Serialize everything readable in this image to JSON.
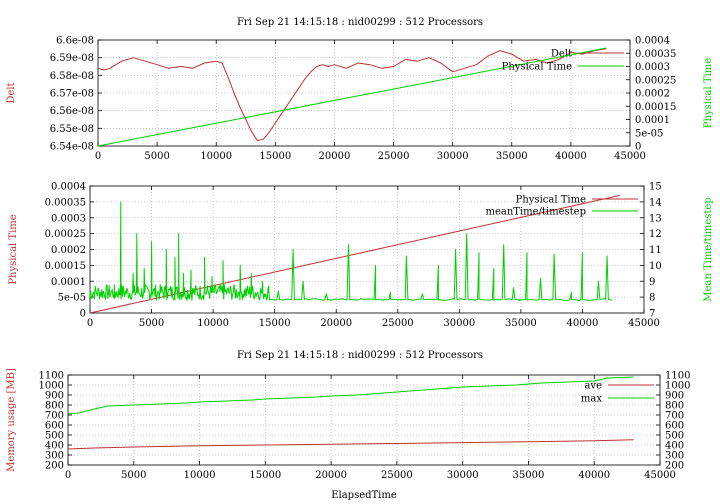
{
  "colors": {
    "red": "#c03030",
    "green": "#00d000",
    "grid": "#a0a0a0"
  },
  "chart_data": [
    {
      "type": "line",
      "title": "Fri Sep 21 14:15:18 : nid00299 : 512 Processors",
      "xlabel": "",
      "ylabel": "Delt",
      "y2label": "Physical Time",
      "xlim": [
        0,
        45000
      ],
      "ylim": [
        6.54e-08,
        6.6e-08
      ],
      "y2lim": [
        0,
        0.0004
      ],
      "xticks": [
        "0",
        "5000",
        "10000",
        "15000",
        "20000",
        "25000",
        "30000",
        "35000",
        "40000",
        "45000"
      ],
      "yticks": [
        "6.54e-08",
        "6.55e-08",
        "6.56e-08",
        "6.57e-08",
        "6.58e-08",
        "6.59e-08",
        "6.6e-08"
      ],
      "y2ticks": [
        "0",
        "5e-05",
        "0.0001",
        "0.00015",
        "0.0002",
        "0.00025",
        "0.0003",
        "0.00035",
        "0.0004"
      ],
      "grid": true,
      "legend_position": "top-right",
      "series": [
        {
          "name": "Delt",
          "axis": "y",
          "color": "red",
          "x": [
            0,
            500,
            1000,
            2000,
            3000,
            4000,
            5000,
            6000,
            7000,
            8000,
            9000,
            10000,
            10500,
            11000,
            11500,
            12000,
            12500,
            13000,
            13500,
            14000,
            14500,
            15000,
            15500,
            16000,
            16500,
            17000,
            17500,
            18000,
            18500,
            19000,
            19500,
            20000,
            21000,
            22000,
            23000,
            24000,
            25000,
            26000,
            27000,
            28000,
            29000,
            30000,
            31000,
            32000,
            33000,
            34000,
            35000,
            36000,
            37000,
            38000,
            39000,
            40000,
            41000,
            42000,
            43000
          ],
          "y": [
            6.584e-08,
            6.583e-08,
            6.584e-08,
            6.588e-08,
            6.59e-08,
            6.588e-08,
            6.586e-08,
            6.584e-08,
            6.585e-08,
            6.584e-08,
            6.587e-08,
            6.588e-08,
            6.587e-08,
            6.579e-08,
            6.57e-08,
            6.562e-08,
            6.555e-08,
            6.548e-08,
            6.543e-08,
            6.544e-08,
            6.548e-08,
            6.553e-08,
            6.558e-08,
            6.563e-08,
            6.568e-08,
            6.573e-08,
            6.578e-08,
            6.582e-08,
            6.585e-08,
            6.586e-08,
            6.585e-08,
            6.586e-08,
            6.584e-08,
            6.587e-08,
            6.586e-08,
            6.584e-08,
            6.585e-08,
            6.589e-08,
            6.588e-08,
            6.59e-08,
            6.587e-08,
            6.582e-08,
            6.584e-08,
            6.586e-08,
            6.591e-08,
            6.594e-08,
            6.592e-08,
            6.588e-08,
            6.589e-08,
            6.587e-08,
            6.589e-08,
            6.593e-08,
            6.592e-08,
            6.594e-08,
            6.595e-08
          ]
        },
        {
          "name": "Physical Time",
          "axis": "y2",
          "color": "green",
          "x": [
            0,
            43000
          ],
          "y": [
            0,
            0.00037
          ]
        }
      ]
    },
    {
      "type": "line",
      "title": "",
      "xlabel": "",
      "ylabel": "Physical Time",
      "y2label": "Mean Time/timestep",
      "xlim": [
        0,
        45000
      ],
      "ylim": [
        0,
        0.0004
      ],
      "y2lim": [
        7,
        15
      ],
      "xticks": [
        "0",
        "5000",
        "10000",
        "15000",
        "20000",
        "25000",
        "30000",
        "35000",
        "40000",
        "45000"
      ],
      "yticks": [
        "0",
        "5e-05",
        "0.0001",
        "0.00015",
        "0.0002",
        "0.00025",
        "0.0003",
        "0.00035",
        "0.0004"
      ],
      "y2ticks": [
        "7",
        "8",
        "9",
        "10",
        "11",
        "12",
        "13",
        "14",
        "15"
      ],
      "grid": true,
      "legend_position": "top-right",
      "series": [
        {
          "name": "Physical Time",
          "axis": "y",
          "color": "red",
          "x": [
            0,
            43000
          ],
          "y": [
            0,
            0.00037
          ]
        },
        {
          "name": "meanTime/timestep",
          "axis": "y2",
          "color": "green",
          "noisy_end_x": 14600,
          "noisy_range": [
            7.8,
            8.8
          ],
          "x": [
            0,
            2000,
            2500,
            3500,
            3800,
            4400,
            5000,
            5300,
            6200,
            6900,
            7200,
            7600,
            8200,
            9300,
            9900,
            10800,
            12200,
            13100,
            14000,
            14500,
            15300,
            16500,
            17300,
            19200,
            21000,
            23200,
            24400,
            25700,
            27000,
            28300,
            29700,
            30600,
            31600,
            32800,
            33600,
            34400,
            35500,
            36600,
            37700,
            39100,
            40000,
            41300,
            42000
          ],
          "y": [
            8.0,
            7.9,
            14.0,
            9.5,
            12.0,
            9.8,
            11.5,
            8.6,
            11.0,
            10.5,
            12.0,
            9.5,
            9.7,
            10.5,
            9.3,
            10.3,
            10.0,
            9.5,
            9.0,
            8.7,
            8.4,
            11.0,
            9.0,
            8.2,
            11.3,
            10.0,
            8.3,
            10.6,
            8.2,
            10.0,
            11.0,
            12.0,
            10.8,
            9.8,
            11.3,
            8.6,
            10.8,
            9.2,
            10.7,
            8.3,
            10.8,
            9.0,
            10.6
          ]
        }
      ]
    },
    {
      "type": "line",
      "title": "Fri Sep 21 14:15:18 : nid00299 : 512 Processors",
      "xlabel": "ElapsedTime",
      "ylabel": "Memory usage [MB]",
      "y2label": "",
      "xlim": [
        0,
        45000
      ],
      "ylim": [
        200,
        1100
      ],
      "y2lim": [
        200,
        1100
      ],
      "xticks": [
        "0",
        "5000",
        "10000",
        "15000",
        "20000",
        "25000",
        "30000",
        "35000",
        "40000",
        "45000"
      ],
      "yticks": [
        "200",
        "300",
        "400",
        "500",
        "600",
        "700",
        "800",
        "900",
        "1000",
        "1100"
      ],
      "y2ticks": [
        "200",
        "300",
        "400",
        "500",
        "600",
        "700",
        "800",
        "900",
        "1000",
        "1100"
      ],
      "grid": true,
      "legend_position": "top-right",
      "series": [
        {
          "name": "ave",
          "axis": "y",
          "color": "red",
          "x": [
            0,
            2000,
            5000,
            10000,
            15000,
            20000,
            25000,
            30000,
            35000,
            40000,
            43000
          ],
          "y": [
            360,
            370,
            380,
            392,
            400,
            408,
            415,
            424,
            432,
            442,
            452
          ]
        },
        {
          "name": "max",
          "axis": "y",
          "color": "green",
          "x": [
            0,
            800,
            2000,
            3000,
            5000,
            7000,
            9000,
            10000,
            12000,
            14000,
            15000,
            17000,
            19000,
            20000,
            22000,
            24000,
            26000,
            28000,
            30000,
            32000,
            34000,
            36000,
            38000,
            40000,
            41000,
            43000
          ],
          "y": [
            710,
            720,
            760,
            790,
            800,
            810,
            820,
            830,
            840,
            850,
            860,
            870,
            880,
            890,
            900,
            920,
            940,
            960,
            980,
            990,
            1000,
            1020,
            1030,
            1040,
            1070,
            1080
          ]
        }
      ]
    }
  ]
}
